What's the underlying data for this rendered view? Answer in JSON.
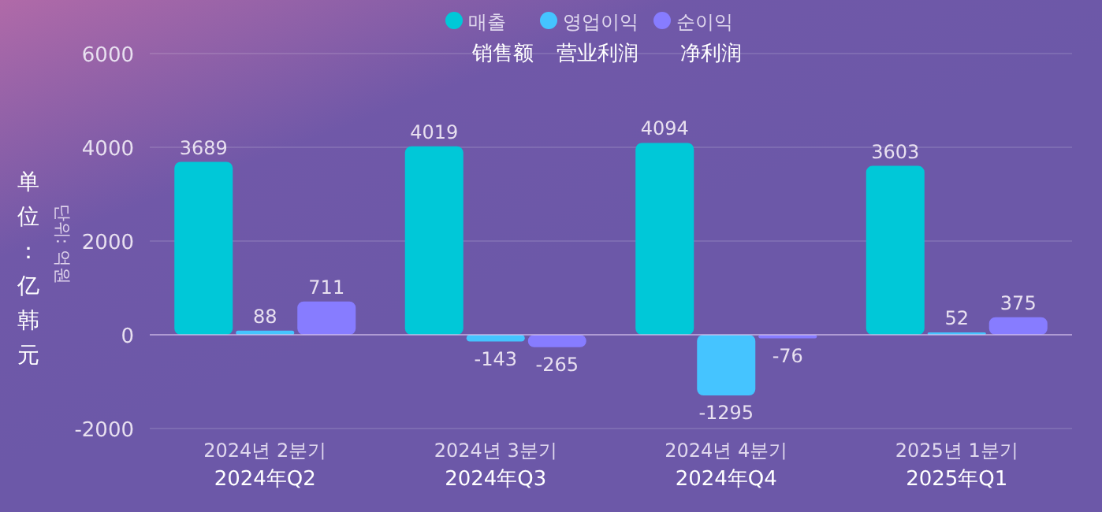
{
  "chart_data": {
    "type": "bar",
    "categories": [
      "2024년 2분기\n2024年Q2",
      "2024년 3분기\n2024年Q3",
      "2024년 4분기\n2024年Q4",
      "2025년 1분기\n2025年Q1"
    ],
    "series": [
      {
        "name": "매출\n销售额",
        "color": "#00c8d8",
        "values": [
          3689,
          4019,
          4094,
          3603
        ]
      },
      {
        "name": "영업이익\n营业利润",
        "color": "#45c4ff",
        "values": [
          88,
          -143,
          -1295,
          52
        ]
      },
      {
        "name": "순이익\n净利润",
        "color": "#877cff",
        "values": [
          711,
          -265,
          -76,
          375
        ]
      }
    ],
    "ylabel": "单位：亿韩元",
    "annotations": [
      "단위: 억원"
    ],
    "ylim": [
      -2000,
      6000
    ],
    "yticks": [
      -2000,
      0,
      2000,
      4000,
      6000
    ],
    "grid": "y",
    "legend": "top",
    "data_labels": true
  }
}
